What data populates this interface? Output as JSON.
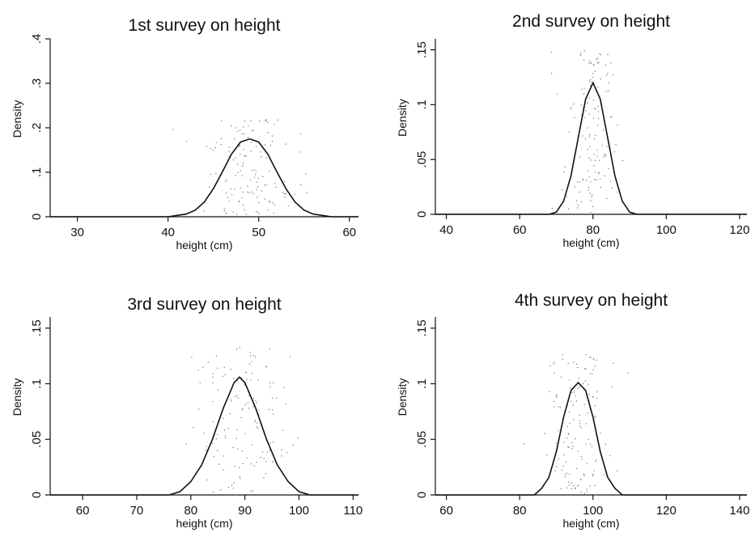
{
  "chart_data": [
    {
      "type": "line",
      "title": "1st survey on height",
      "xlabel": "height (cm)",
      "ylabel": "Density",
      "xlim": [
        27,
        61
      ],
      "ylim": [
        0,
        0.4
      ],
      "xticks": [
        30,
        40,
        50,
        60
      ],
      "yticks": [
        0,
        0.1,
        0.2,
        0.3,
        0.4
      ],
      "ytick_labels": [
        "0",
        ".1",
        ".2",
        ".3",
        ".4"
      ],
      "grid": false,
      "series": [
        {
          "mean": 49,
          "x": [
            27,
            40,
            42,
            43,
            44,
            45,
            46,
            47,
            48,
            49,
            50,
            51,
            52,
            53,
            54,
            55,
            56,
            58,
            61
          ],
          "y": [
            0,
            0.0,
            0.006,
            0.015,
            0.033,
            0.063,
            0.101,
            0.141,
            0.168,
            0.175,
            0.168,
            0.141,
            0.101,
            0.063,
            0.033,
            0.015,
            0.006,
            0.0,
            0
          ]
        }
      ]
    },
    {
      "type": "line",
      "title": "2nd survey on height",
      "xlabel": "height (cm)",
      "ylabel": "Density",
      "xlim": [
        37,
        122
      ],
      "ylim": [
        0,
        0.16
      ],
      "xticks": [
        40,
        60,
        80,
        100,
        120
      ],
      "yticks": [
        0,
        0.05,
        0.1,
        0.15
      ],
      "ytick_labels": [
        "0",
        ".05",
        ".1",
        ".15"
      ],
      "grid": false,
      "series": [
        {
          "mean": 80,
          "x": [
            37,
            68,
            70,
            72,
            74,
            76,
            78,
            80,
            82,
            84,
            86,
            88,
            90,
            92,
            122
          ],
          "y": [
            0,
            0.0,
            0.002,
            0.012,
            0.035,
            0.07,
            0.105,
            0.12,
            0.105,
            0.07,
            0.035,
            0.012,
            0.002,
            0.0,
            0
          ]
        }
      ]
    },
    {
      "type": "line",
      "title": "3rd survey on height",
      "xlabel": "height (cm)",
      "ylabel": "Density",
      "xlim": [
        54,
        111
      ],
      "ylim": [
        0,
        0.16
      ],
      "xticks": [
        60,
        70,
        80,
        90,
        100,
        110
      ],
      "yticks": [
        0,
        0.05,
        0.1,
        0.15
      ],
      "ytick_labels": [
        "0",
        ".05",
        ".1",
        ".15"
      ],
      "grid": false,
      "series": [
        {
          "mean": 89,
          "x": [
            54,
            76,
            78,
            80,
            82,
            84,
            86,
            88,
            89,
            90,
            92,
            94,
            96,
            98,
            100,
            102,
            111
          ],
          "y": [
            0,
            0.0,
            0.003,
            0.012,
            0.027,
            0.05,
            0.078,
            0.101,
            0.106,
            0.101,
            0.078,
            0.05,
            0.027,
            0.012,
            0.003,
            0.0,
            0
          ]
        }
      ]
    },
    {
      "type": "line",
      "title": "4th survey on height",
      "xlabel": "height (cm)",
      "ylabel": "Density",
      "xlim": [
        57,
        142
      ],
      "ylim": [
        0,
        0.16
      ],
      "xticks": [
        60,
        80,
        100,
        120,
        140
      ],
      "yticks": [
        0,
        0.05,
        0.1,
        0.15
      ],
      "ytick_labels": [
        "0",
        ".05",
        ".1",
        ".15"
      ],
      "grid": false,
      "series": [
        {
          "mean": 96,
          "x": [
            57,
            84,
            86,
            88,
            90,
            92,
            94,
            96,
            98,
            100,
            102,
            104,
            106,
            108,
            142
          ],
          "y": [
            0,
            0.0,
            0.006,
            0.016,
            0.039,
            0.07,
            0.094,
            0.101,
            0.094,
            0.07,
            0.039,
            0.016,
            0.006,
            0.0,
            0
          ]
        }
      ]
    }
  ]
}
